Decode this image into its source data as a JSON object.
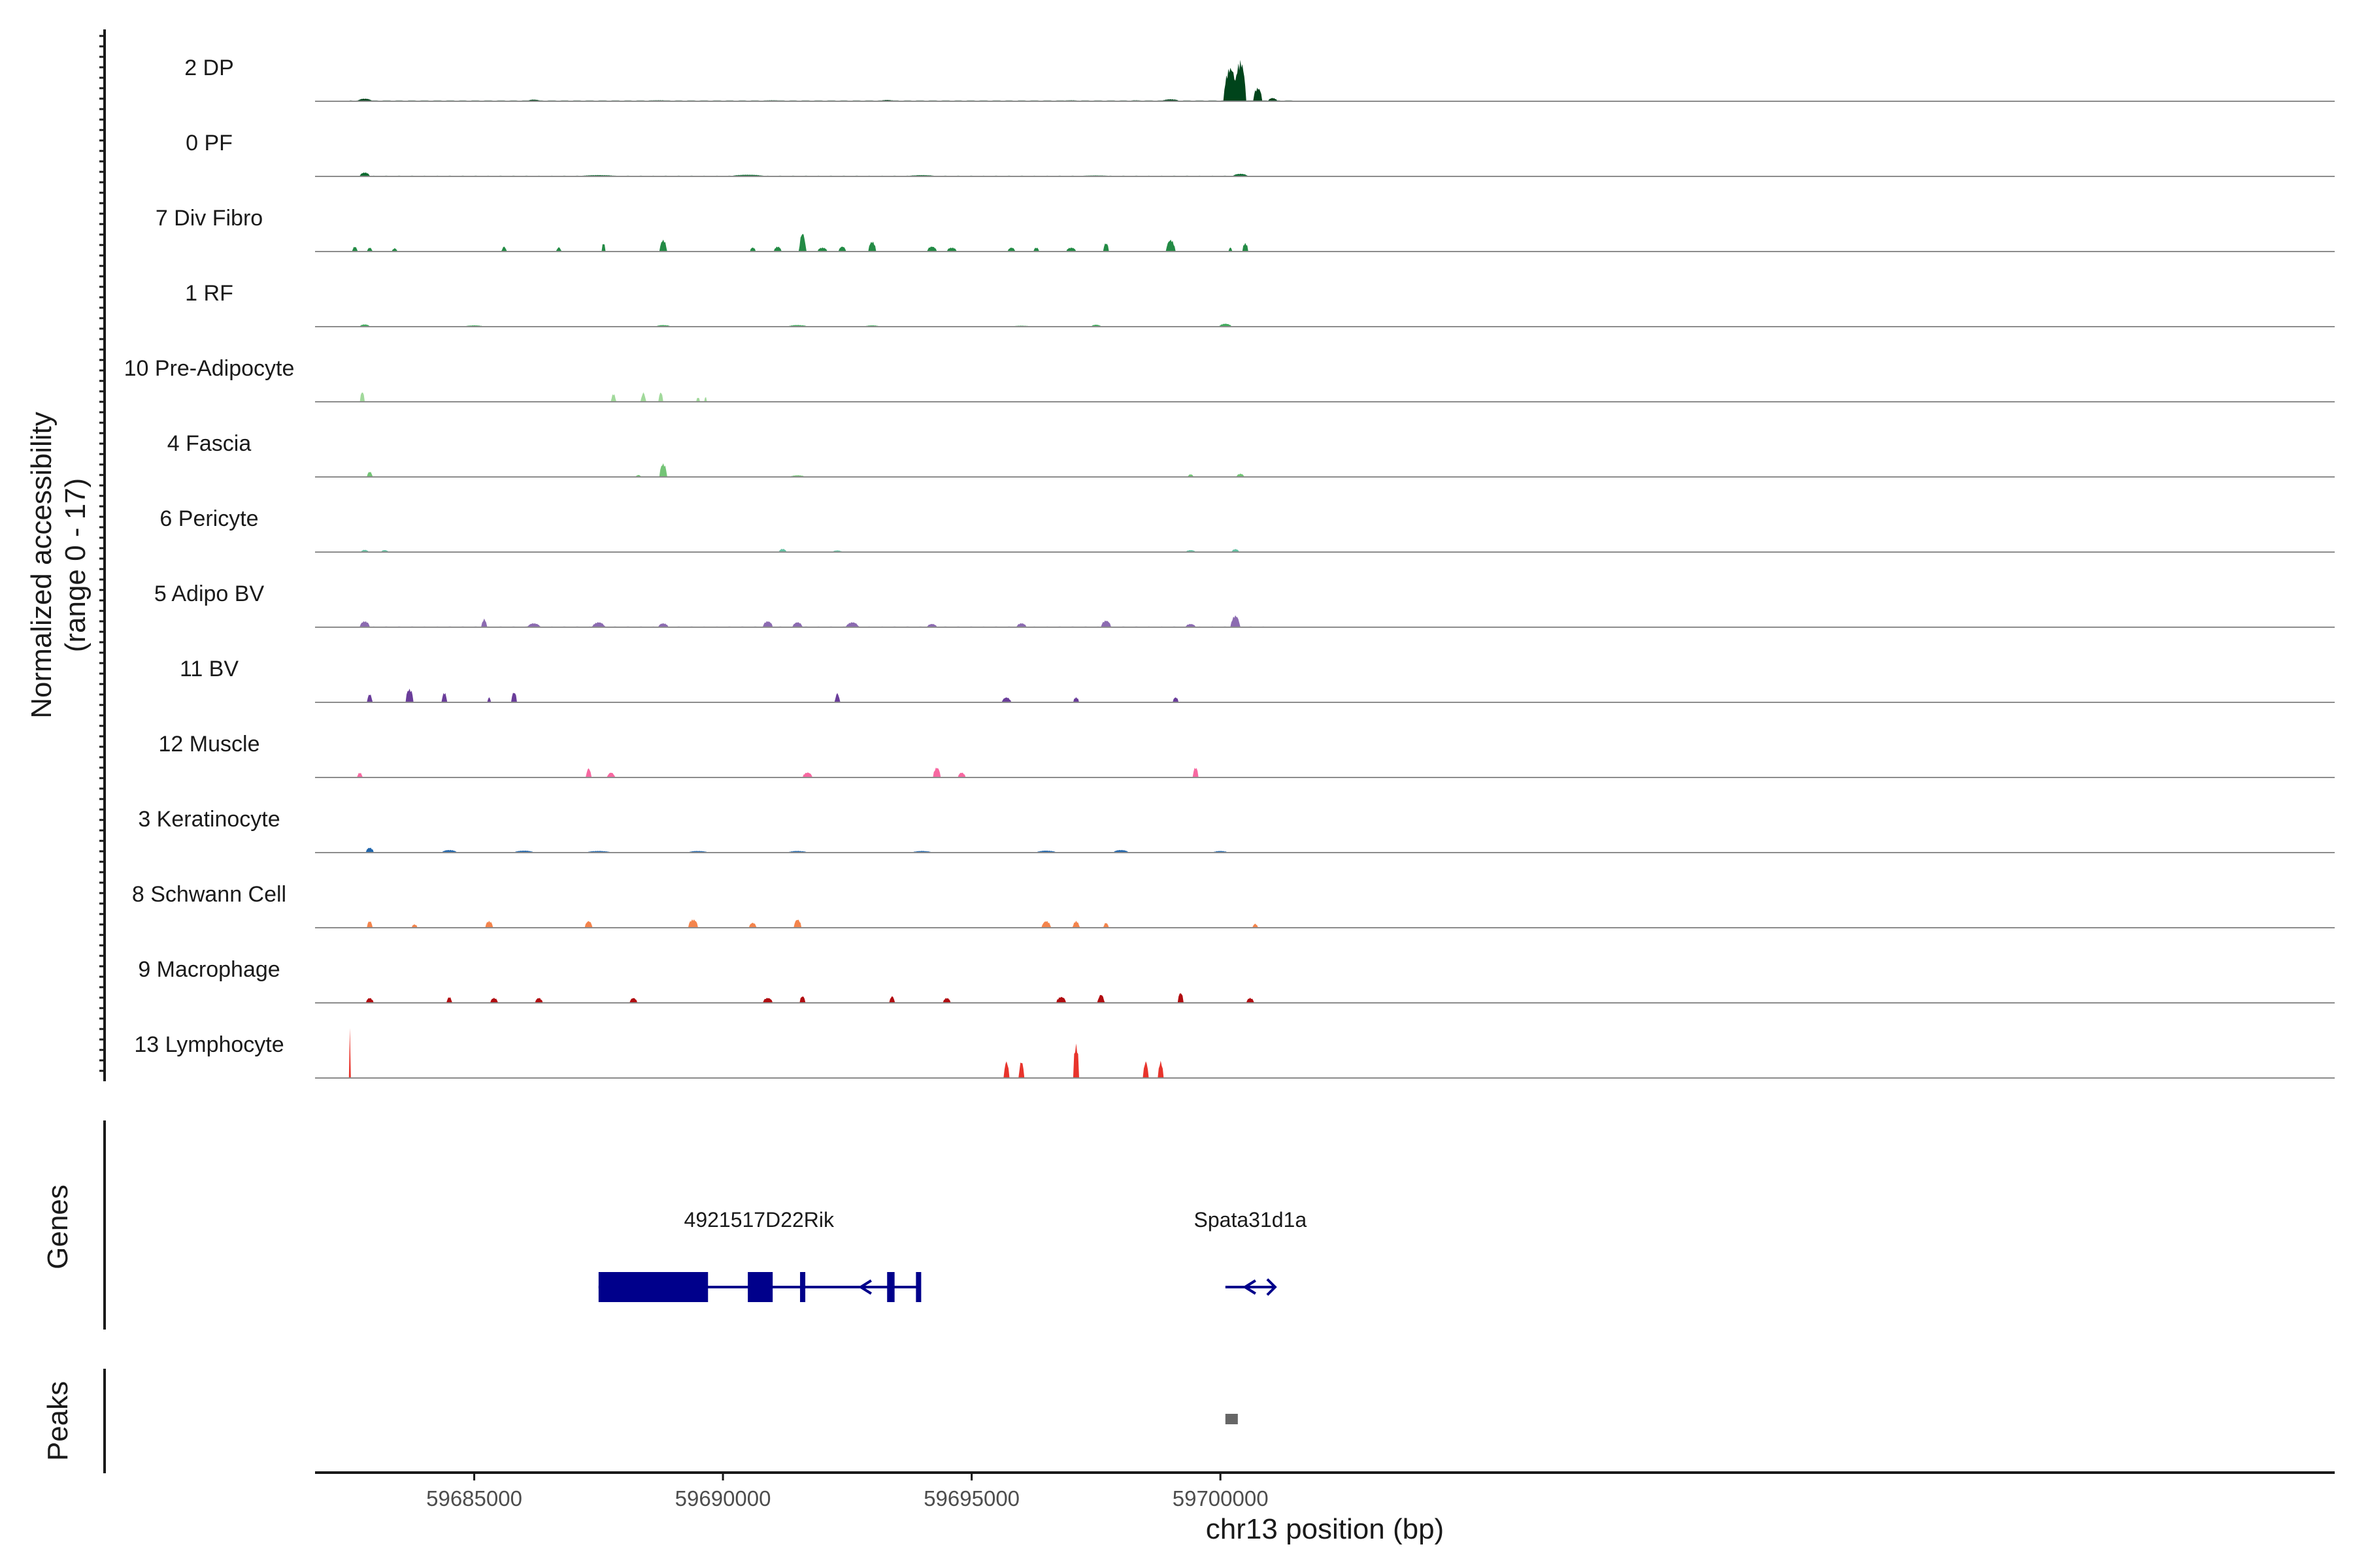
{
  "chart_data": {
    "type": "area",
    "region": "chr13",
    "xlim": [
      59681800,
      59722400
    ],
    "ylim": [
      0,
      17
    ],
    "ylabel": [
      "Normalized accessibility",
      "(range 0 - 17)"
    ],
    "xlabel": "chr13 position (bp)",
    "x_ticks": [
      59685000,
      59690000,
      59695000,
      59700000
    ],
    "x_tick_labels": [
      "59685000",
      "59690000",
      "59695000",
      "59700000"
    ],
    "tracks": [
      {
        "name": "2 DP",
        "color": "#00441b",
        "peaks": [
          [
            59682800,
            0.8,
            280
          ],
          [
            59686200,
            0.5,
            260
          ],
          [
            59688700,
            0.3,
            600
          ],
          [
            59691000,
            0.3,
            500
          ],
          [
            59693300,
            0.4,
            300
          ],
          [
            59697000,
            0.3,
            400
          ],
          [
            59698300,
            0.3,
            300
          ],
          [
            59699000,
            0.6,
            350
          ],
          [
            59700200,
            10.0,
            260
          ],
          [
            59700400,
            12.0,
            220
          ],
          [
            59700750,
            4.0,
            180
          ],
          [
            59701050,
            1.0,
            180
          ]
        ],
        "span": [
          59682500,
          59701500
        ],
        "baseline": 0.25
      },
      {
        "name": "0 PF",
        "color": "#0c6b30",
        "peaks": [
          [
            59682800,
            1.2,
            200
          ],
          [
            59687500,
            0.4,
            800
          ],
          [
            59690500,
            0.5,
            700
          ],
          [
            59694000,
            0.4,
            600
          ],
          [
            59697500,
            0.3,
            700
          ],
          [
            59700400,
            0.8,
            300
          ]
        ],
        "span": [
          59682500,
          59700500
        ],
        "baseline": 0.2
      },
      {
        "name": "7 Div Fibro",
        "color": "#238b45",
        "peaks": [
          [
            59682600,
            1.5,
            100
          ],
          [
            59682900,
            1.2,
            100
          ],
          [
            59683400,
            1.0,
            100
          ],
          [
            59685600,
            1.5,
            90
          ],
          [
            59686700,
            1.3,
            90
          ],
          [
            59687600,
            2.5,
            80
          ],
          [
            59688800,
            3.5,
            140
          ],
          [
            59690600,
            1.2,
            120
          ],
          [
            59691100,
            1.5,
            150
          ],
          [
            59691600,
            5.5,
            130
          ],
          [
            59692000,
            1.2,
            200
          ],
          [
            59692400,
            1.5,
            150
          ],
          [
            59693000,
            3.0,
            150
          ],
          [
            59694200,
            1.5,
            200
          ],
          [
            59694600,
            1.2,
            200
          ],
          [
            59695800,
            1.2,
            150
          ],
          [
            59696300,
            1.2,
            120
          ],
          [
            59697000,
            1.2,
            200
          ],
          [
            59697700,
            2.5,
            120
          ],
          [
            59699000,
            3.5,
            180
          ],
          [
            59700500,
            2.5,
            120
          ],
          [
            59700200,
            1.2,
            80
          ]
        ],
        "span": null,
        "baseline": 0
      },
      {
        "name": "1 RF",
        "color": "#41ab5d",
        "peaks": [
          [
            59682800,
            0.7,
            200
          ],
          [
            59685000,
            0.4,
            400
          ],
          [
            59688800,
            0.5,
            300
          ],
          [
            59691500,
            0.5,
            400
          ],
          [
            59693000,
            0.4,
            300
          ],
          [
            59696000,
            0.3,
            400
          ],
          [
            59697500,
            0.6,
            200
          ],
          [
            59700100,
            0.9,
            250
          ]
        ],
        "span": [
          59682500,
          59701500
        ],
        "baseline": 0.15
      },
      {
        "name": "10 Pre-Adipocyte",
        "color": "#a1d99b",
        "peaks": [
          [
            59682750,
            3.0,
            90
          ],
          [
            59687800,
            2.5,
            90
          ],
          [
            59688400,
            2.8,
            90
          ],
          [
            59688750,
            2.8,
            100
          ],
          [
            59689500,
            1.5,
            60
          ],
          [
            59689650,
            1.5,
            60
          ]
        ],
        "span": null,
        "baseline": 0
      },
      {
        "name": "4 Fascia",
        "color": "#74c476",
        "peaks": [
          [
            59682900,
            1.6,
            110
          ],
          [
            59688300,
            0.6,
            100
          ],
          [
            59688800,
            4.0,
            150
          ],
          [
            59691500,
            0.5,
            300
          ],
          [
            59699400,
            0.8,
            120
          ],
          [
            59700400,
            1.0,
            150
          ]
        ],
        "span": [
          59682500,
          59701000
        ],
        "baseline": 0.1
      },
      {
        "name": "6 Pericyte",
        "color": "#66c2a4",
        "peaks": [
          [
            59682800,
            0.7,
            150
          ],
          [
            59683200,
            0.6,
            150
          ],
          [
            59691200,
            1.0,
            150
          ],
          [
            59692300,
            0.5,
            200
          ],
          [
            59699400,
            0.6,
            200
          ],
          [
            59700300,
            0.9,
            150
          ]
        ],
        "span": null,
        "baseline": 0
      },
      {
        "name": "5 Adipo BV",
        "color": "#8c6bb1",
        "peaks": [
          [
            59682800,
            1.8,
            200
          ],
          [
            59685200,
            2.5,
            100
          ],
          [
            59686200,
            1.2,
            250
          ],
          [
            59687500,
            1.5,
            250
          ],
          [
            59688800,
            1.2,
            200
          ],
          [
            59690900,
            1.8,
            200
          ],
          [
            59691500,
            1.5,
            200
          ],
          [
            59692600,
            1.5,
            250
          ],
          [
            59696000,
            1.2,
            200
          ],
          [
            59697700,
            2.0,
            200
          ],
          [
            59699400,
            1.0,
            200
          ],
          [
            59700300,
            3.5,
            180
          ],
          [
            59694200,
            1.0,
            200
          ]
        ],
        "span": [
          59682500,
          59701000
        ],
        "baseline": 0.2
      },
      {
        "name": "11 BV",
        "color": "#6a3d9a",
        "peaks": [
          [
            59682900,
            2.5,
            100
          ],
          [
            59683700,
            4.0,
            160
          ],
          [
            59684400,
            3.0,
            100
          ],
          [
            59685300,
            1.5,
            80
          ],
          [
            59685800,
            3.0,
            120
          ],
          [
            59692300,
            2.8,
            90
          ],
          [
            59695700,
            1.5,
            180
          ],
          [
            59697100,
            1.5,
            120
          ],
          [
            59699100,
            1.5,
            120
          ]
        ],
        "span": null,
        "baseline": 0
      },
      {
        "name": "12 Muscle",
        "color": "#f768a1",
        "peaks": [
          [
            59682700,
            1.5,
            100
          ],
          [
            59687300,
            2.8,
            100
          ],
          [
            59687750,
            1.5,
            150
          ],
          [
            59691700,
            1.5,
            200
          ],
          [
            59694300,
            3.0,
            150
          ],
          [
            59694800,
            1.5,
            150
          ],
          [
            59699500,
            3.0,
            120
          ]
        ],
        "span": null,
        "baseline": 0
      },
      {
        "name": "3 Keratinocyte",
        "color": "#2166ac",
        "peaks": [
          [
            59682900,
            1.5,
            160
          ],
          [
            59684500,
            0.8,
            300
          ],
          [
            59686000,
            0.6,
            400
          ],
          [
            59687500,
            0.5,
            500
          ],
          [
            59689500,
            0.5,
            400
          ],
          [
            59691500,
            0.5,
            400
          ],
          [
            59694000,
            0.5,
            400
          ],
          [
            59696500,
            0.6,
            400
          ],
          [
            59698000,
            0.8,
            300
          ],
          [
            59700000,
            0.5,
            300
          ]
        ],
        "span": [
          59682500,
          59700500
        ],
        "baseline": 0.1
      },
      {
        "name": "8 Schwann Cell",
        "color": "#f4844c",
        "peaks": [
          [
            59682900,
            2.0,
            120
          ],
          [
            59685300,
            2.0,
            160
          ],
          [
            59687300,
            2.0,
            150
          ],
          [
            59689400,
            2.5,
            200
          ],
          [
            59691500,
            2.5,
            150
          ],
          [
            59696500,
            2.0,
            180
          ],
          [
            59697100,
            2.0,
            130
          ],
          [
            59697700,
            1.5,
            100
          ],
          [
            59700700,
            1.2,
            100
          ],
          [
            59683800,
            1.0,
            120
          ],
          [
            59690600,
            1.5,
            150
          ]
        ],
        "span": null,
        "baseline": 0
      },
      {
        "name": "9 Macrophage",
        "color": "#b10c10",
        "peaks": [
          [
            59682900,
            1.5,
            150
          ],
          [
            59684500,
            1.8,
            100
          ],
          [
            59685400,
            1.5,
            150
          ],
          [
            59686300,
            1.5,
            150
          ],
          [
            59688200,
            1.5,
            150
          ],
          [
            59690900,
            1.5,
            200
          ],
          [
            59691600,
            2.0,
            120
          ],
          [
            59693400,
            2.0,
            100
          ],
          [
            59694500,
            1.5,
            150
          ],
          [
            59696800,
            1.8,
            200
          ],
          [
            59697600,
            2.5,
            130
          ],
          [
            59699200,
            3.0,
            120
          ],
          [
            59700600,
            1.5,
            150
          ]
        ],
        "span": null,
        "baseline": 0
      },
      {
        "name": "13 Lymphocyte",
        "color": "#e8342c",
        "peaks": [
          [
            59682500,
            17.0,
            40
          ],
          [
            59695700,
            5.0,
            100
          ],
          [
            59696000,
            5.0,
            100
          ],
          [
            59697100,
            10.0,
            120
          ],
          [
            59698500,
            5.0,
            100
          ],
          [
            59698800,
            5.0,
            100
          ]
        ],
        "span": null,
        "baseline": 0
      }
    ],
    "genes": {
      "label": "Genes",
      "color": "#00008b",
      "items": [
        {
          "name": "4921517D22Rik",
          "start": 59687500,
          "end": 59693950,
          "strand": "-",
          "exons": [
            [
              59687500,
              59689700
            ],
            [
              59690500,
              59691000
            ],
            [
              59691550,
              59691650
            ],
            [
              59693300,
              59693450
            ],
            [
              59693880,
              59693950
            ]
          ]
        },
        {
          "name": "Spata31d1a",
          "start": 59700100,
          "end": 59701100,
          "strand": "-",
          "exons": []
        }
      ]
    },
    "peaks_track": {
      "label": "Peaks",
      "color": "#666666",
      "regions": [
        [
          59700100,
          59700350
        ]
      ]
    }
  }
}
